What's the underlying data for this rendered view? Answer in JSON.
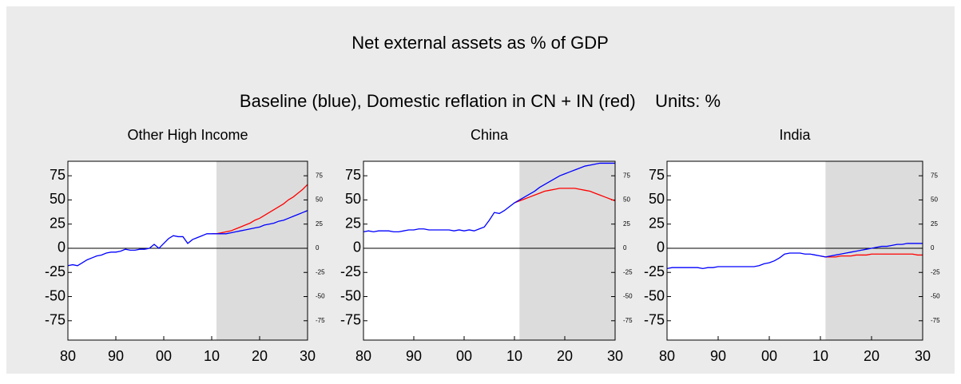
{
  "title": "Net external assets as % of GDP",
  "subtitle": "Baseline (blue), Domestic reflation in CN + IN (red)    Units: %",
  "chart_data": [
    {
      "type": "line",
      "title": "Other High Income",
      "x": [
        1980,
        1981,
        1982,
        1983,
        1984,
        1985,
        1986,
        1987,
        1988,
        1989,
        1990,
        1991,
        1992,
        1993,
        1994,
        1995,
        1996,
        1997,
        1998,
        1999,
        2000,
        2001,
        2002,
        2003,
        2004,
        2005,
        2006,
        2007,
        2008,
        2009,
        2010,
        2011,
        2012,
        2013,
        2014,
        2015,
        2016,
        2017,
        2018,
        2019,
        2020,
        2021,
        2022,
        2023,
        2024,
        2025,
        2026,
        2027,
        2028,
        2029,
        2030
      ],
      "series": [
        {
          "name": "Baseline",
          "color": "#0000ff",
          "values": [
            -18,
            -17,
            -18,
            -15,
            -12,
            -10,
            -8,
            -7,
            -5,
            -4,
            -4,
            -3,
            -1,
            -2,
            -2,
            -1,
            -1,
            0,
            4,
            0,
            5,
            10,
            13,
            12,
            12,
            5,
            9,
            11,
            13,
            15,
            15,
            15,
            15,
            15,
            16,
            17,
            18,
            19,
            20,
            21,
            22,
            24,
            25,
            26,
            28,
            29,
            31,
            33,
            35,
            37,
            39
          ]
        },
        {
          "name": "Domestic reflation in CN + IN",
          "color": "#ff0000",
          "values": [
            null,
            null,
            null,
            null,
            null,
            null,
            null,
            null,
            null,
            null,
            null,
            null,
            null,
            null,
            null,
            null,
            null,
            null,
            null,
            null,
            null,
            null,
            null,
            null,
            null,
            null,
            null,
            null,
            null,
            null,
            15,
            15,
            16,
            17,
            18,
            20,
            22,
            24,
            26,
            29,
            31,
            34,
            37,
            40,
            43,
            46,
            50,
            53,
            57,
            61,
            66
          ]
        }
      ],
      "shaded_xrange": [
        2011,
        2030
      ],
      "shade_color": "#dcdcdc",
      "xlim": [
        1980,
        2030
      ],
      "xticks": [
        {
          "value": 1980,
          "label": "80"
        },
        {
          "value": 1990,
          "label": "90"
        },
        {
          "value": 2000,
          "label": "00"
        },
        {
          "value": 2010,
          "label": "10"
        },
        {
          "value": 2020,
          "label": "20"
        },
        {
          "value": 2030,
          "label": "30"
        }
      ],
      "ylim": [
        -95,
        90
      ],
      "yticks": [
        75,
        50,
        25,
        0,
        -25,
        -50,
        -75
      ],
      "y2lim": [
        -95,
        90
      ],
      "y2ticks": [
        75,
        50,
        25,
        0,
        -25,
        -50,
        -75
      ]
    },
    {
      "type": "line",
      "title": "China",
      "x": [
        1980,
        1981,
        1982,
        1983,
        1984,
        1985,
        1986,
        1987,
        1988,
        1989,
        1990,
        1991,
        1992,
        1993,
        1994,
        1995,
        1996,
        1997,
        1998,
        1999,
        2000,
        2001,
        2002,
        2003,
        2004,
        2005,
        2006,
        2007,
        2008,
        2009,
        2010,
        2011,
        2012,
        2013,
        2014,
        2015,
        2016,
        2017,
        2018,
        2019,
        2020,
        2021,
        2022,
        2023,
        2024,
        2025,
        2026,
        2027,
        2028,
        2029,
        2030
      ],
      "series": [
        {
          "name": "Baseline",
          "color": "#0000ff",
          "values": [
            17,
            18,
            17,
            18,
            18,
            18,
            17,
            17,
            18,
            19,
            19,
            20,
            20,
            19,
            19,
            19,
            19,
            19,
            18,
            19,
            18,
            19,
            18,
            20,
            22,
            29,
            37,
            36,
            39,
            43,
            47,
            50,
            53,
            56,
            59,
            63,
            66,
            69,
            72,
            75,
            77,
            79,
            81,
            83,
            85,
            86,
            87,
            88,
            88,
            88,
            88
          ]
        },
        {
          "name": "Domestic reflation in CN + IN",
          "color": "#ff0000",
          "values": [
            null,
            null,
            null,
            null,
            null,
            null,
            null,
            null,
            null,
            null,
            null,
            null,
            null,
            null,
            null,
            null,
            null,
            null,
            null,
            null,
            null,
            null,
            null,
            null,
            null,
            null,
            null,
            null,
            null,
            null,
            47,
            49,
            51,
            53,
            55,
            57,
            59,
            60,
            61,
            62,
            62,
            62,
            62,
            61,
            60,
            59,
            57,
            55,
            53,
            51,
            49
          ]
        }
      ],
      "shaded_xrange": [
        2011,
        2030
      ],
      "shade_color": "#dcdcdc",
      "xlim": [
        1980,
        2030
      ],
      "xticks": [
        {
          "value": 1980,
          "label": "80"
        },
        {
          "value": 1990,
          "label": "90"
        },
        {
          "value": 2000,
          "label": "00"
        },
        {
          "value": 2010,
          "label": "10"
        },
        {
          "value": 2020,
          "label": "20"
        },
        {
          "value": 2030,
          "label": "30"
        }
      ],
      "ylim": [
        -95,
        90
      ],
      "yticks": [
        75,
        50,
        25,
        0,
        -25,
        -50,
        -75
      ],
      "y2lim": [
        -95,
        90
      ],
      "y2ticks": [
        75,
        50,
        25,
        0,
        -25,
        -50,
        -75
      ]
    },
    {
      "type": "line",
      "title": "India",
      "x": [
        1980,
        1981,
        1982,
        1983,
        1984,
        1985,
        1986,
        1987,
        1988,
        1989,
        1990,
        1991,
        1992,
        1993,
        1994,
        1995,
        1996,
        1997,
        1998,
        1999,
        2000,
        2001,
        2002,
        2003,
        2004,
        2005,
        2006,
        2007,
        2008,
        2009,
        2010,
        2011,
        2012,
        2013,
        2014,
        2015,
        2016,
        2017,
        2018,
        2019,
        2020,
        2021,
        2022,
        2023,
        2024,
        2025,
        2026,
        2027,
        2028,
        2029,
        2030
      ],
      "series": [
        {
          "name": "Baseline",
          "color": "#0000ff",
          "values": [
            -21,
            -20,
            -20,
            -20,
            -20,
            -20,
            -20,
            -21,
            -20,
            -20,
            -19,
            -19,
            -19,
            -19,
            -19,
            -19,
            -19,
            -19,
            -18,
            -16,
            -15,
            -13,
            -10,
            -6,
            -5,
            -5,
            -5,
            -6,
            -6,
            -7,
            -8,
            -9,
            -8,
            -7,
            -6,
            -5,
            -4,
            -3,
            -2,
            -1,
            0,
            1,
            2,
            2,
            3,
            4,
            4,
            5,
            5,
            5,
            5
          ]
        },
        {
          "name": "Domestic reflation in CN + IN",
          "color": "#ff0000",
          "values": [
            null,
            null,
            null,
            null,
            null,
            null,
            null,
            null,
            null,
            null,
            null,
            null,
            null,
            null,
            null,
            null,
            null,
            null,
            null,
            null,
            null,
            null,
            null,
            null,
            null,
            null,
            null,
            null,
            null,
            null,
            -8,
            -9,
            -9,
            -9,
            -8,
            -8,
            -8,
            -7,
            -7,
            -7,
            -6,
            -6,
            -6,
            -6,
            -6,
            -6,
            -6,
            -6,
            -6,
            -7,
            -7
          ]
        }
      ],
      "shaded_xrange": [
        2011,
        2030
      ],
      "shade_color": "#dcdcdc",
      "xlim": [
        1980,
        2030
      ],
      "xticks": [
        {
          "value": 1980,
          "label": "80"
        },
        {
          "value": 1990,
          "label": "90"
        },
        {
          "value": 2000,
          "label": "00"
        },
        {
          "value": 2010,
          "label": "10"
        },
        {
          "value": 2020,
          "label": "20"
        },
        {
          "value": 2030,
          "label": "30"
        }
      ],
      "ylim": [
        -95,
        90
      ],
      "yticks": [
        75,
        50,
        25,
        0,
        -25,
        -50,
        -75
      ],
      "y2lim": [
        -95,
        90
      ],
      "y2ticks": [
        75,
        50,
        25,
        0,
        -25,
        -50,
        -75
      ]
    }
  ]
}
